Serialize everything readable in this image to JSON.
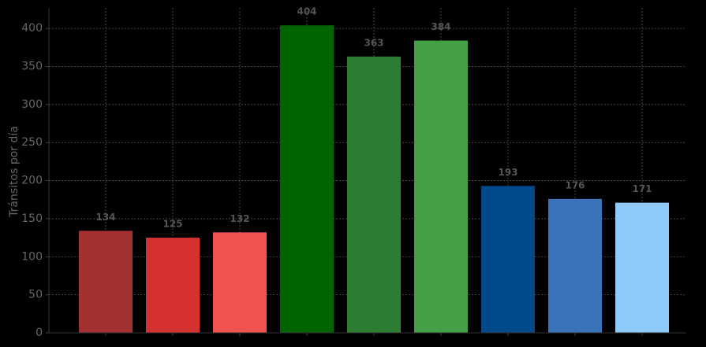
{
  "chart_data": {
    "type": "bar",
    "y_label": "Tránsitos por día",
    "categories": [
      null,
      null,
      null,
      null,
      null,
      null,
      null,
      null,
      null
    ],
    "values": [
      134,
      125,
      132,
      404,
      363,
      384,
      193,
      176,
      171
    ],
    "colors": [
      "#a33131",
      "#d63131",
      "#ef5350",
      "#006400",
      "#2e7d32",
      "#43a047",
      "#004a8c",
      "#3a73b9",
      "#90caf9"
    ],
    "ylim": [
      0,
      427
    ],
    "yticks": [
      0,
      50,
      100,
      150,
      200,
      250,
      300,
      350,
      400
    ],
    "grid": true
  }
}
